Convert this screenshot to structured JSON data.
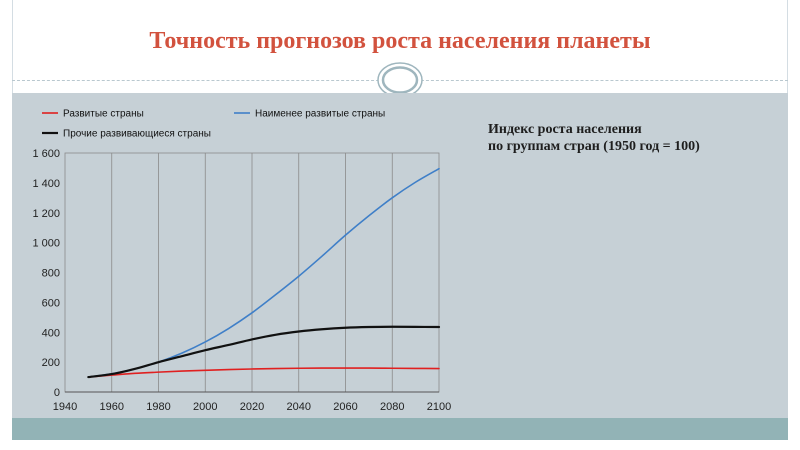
{
  "slide": {
    "title": "Точность прогнозов роста населения планеты",
    "note_lines": [
      "Индекс роста населения",
      "по группам стран (1950 год = 100)"
    ],
    "colors": {
      "title": "#d2523e",
      "band": "#c6d0d6",
      "bottom_band": "#92b3b6"
    }
  },
  "chart_data": {
    "type": "line",
    "title": "",
    "xlabel": "",
    "ylabel": "",
    "xlim": [
      1940,
      2100
    ],
    "ylim": [
      0,
      1600
    ],
    "x_ticks": [
      1940,
      1960,
      1980,
      2000,
      2020,
      2040,
      2060,
      2080,
      2100
    ],
    "x_tick_labels": [
      "1940",
      "1960",
      "1980",
      "2000",
      "2020",
      "2040",
      "2060",
      "2080",
      "2100"
    ],
    "y_ticks": [
      0,
      200,
      400,
      600,
      800,
      1000,
      1200,
      1400,
      1600
    ],
    "y_tick_labels": [
      "0",
      "200",
      "400",
      "600",
      "800",
      "1 000",
      "1 200",
      "1 400",
      "1 600"
    ],
    "grid": "vertical",
    "legend_position": "top",
    "x": [
      1950,
      1960,
      1970,
      1980,
      1990,
      2000,
      2010,
      2020,
      2030,
      2040,
      2050,
      2060,
      2070,
      2080,
      2090,
      2100
    ],
    "series": [
      {
        "name": "Развитые страны",
        "color": "#e02020",
        "values": [
          100,
          113,
          125,
          133,
          140,
          145,
          150,
          154,
          157,
          159,
          160,
          160,
          160,
          159,
          158,
          157
        ]
      },
      {
        "name": "Наименее развитые страны",
        "color": "#3f7fc8",
        "values": [
          100,
          122,
          155,
          200,
          260,
          335,
          425,
          530,
          650,
          775,
          910,
          1050,
          1180,
          1300,
          1405,
          1495
        ]
      },
      {
        "name": "Прочие развивающиеся страны",
        "color": "#111111",
        "values": [
          100,
          120,
          155,
          200,
          240,
          280,
          315,
          352,
          383,
          405,
          420,
          430,
          435,
          437,
          436,
          435
        ]
      }
    ]
  }
}
